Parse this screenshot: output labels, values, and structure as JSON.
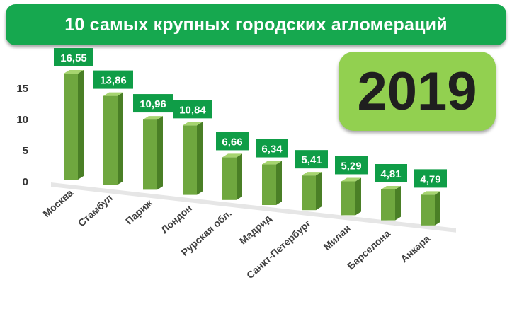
{
  "header": {
    "title": "10 самых крупных городских агломераций",
    "year": "2019"
  },
  "colors": {
    "banner": "#16a84f",
    "badge": "#92d050",
    "bar_front": "#6fa73f",
    "bar_side": "#4a7f26",
    "bar_top": "#a6d46f",
    "label_bg": "#0f9d47"
  },
  "chart_data": {
    "type": "bar",
    "title": "10 самых крупных городских агломераций",
    "categories": [
      "Москва",
      "Стамбул",
      "Париж",
      "Лондон",
      "Рурская обл.",
      "Мадрид",
      "Санкт-Петербург",
      "Милан",
      "Барселона",
      "Анкара"
    ],
    "values": [
      16.55,
      13.86,
      10.96,
      10.84,
      6.66,
      6.34,
      5.41,
      5.29,
      4.81,
      4.79
    ],
    "value_labels": [
      "16,55",
      "13,86",
      "10,96",
      "10,84",
      "6,66",
      "6,34",
      "5,41",
      "5,29",
      "4,81",
      "4,79"
    ],
    "yticks": [
      "0",
      "5",
      "10",
      "15"
    ],
    "ylim": [
      0,
      18
    ],
    "grid": false,
    "legend": "none"
  }
}
